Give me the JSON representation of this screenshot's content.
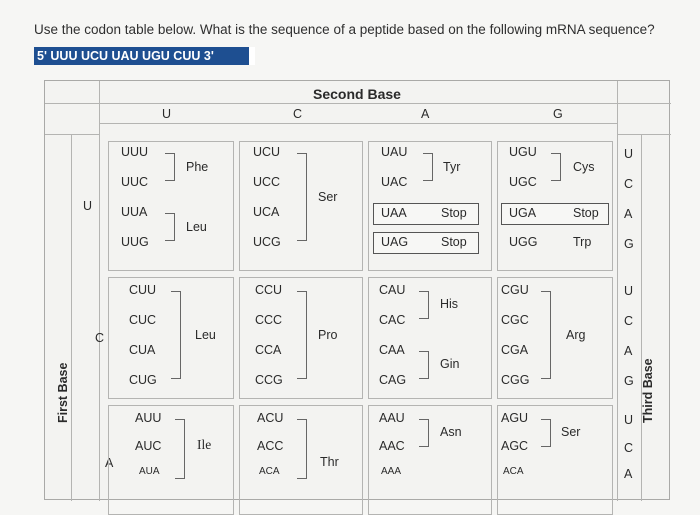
{
  "question": "Use the codon table below. What is the sequence of a peptide based on the following mRNA sequence?",
  "sequence": "5' UUU UCU UAU UGU CUU 3'",
  "table": {
    "second_base_label": "Second Base",
    "first_base_label": "First Base",
    "third_base_label": "Third Base",
    "columns": [
      "U",
      "C",
      "A",
      "G"
    ],
    "rows_first": [
      "U",
      "C",
      "A"
    ],
    "third_bases": [
      "U",
      "C",
      "A",
      "G",
      "U",
      "C",
      "A",
      "G",
      "U",
      "C",
      "A"
    ],
    "row_U": {
      "U": {
        "codons": [
          "UUU",
          "UUC",
          "UUA",
          "UUG"
        ],
        "aa1": "Phe",
        "aa2": "Leu"
      },
      "C": {
        "codons": [
          "UCU",
          "UCC",
          "UCA",
          "UCG"
        ],
        "aa": "Ser"
      },
      "A": {
        "codons": [
          "UAU",
          "UAC",
          "UAA",
          "UAG"
        ],
        "aa1": "Tyr",
        "stop1": "Stop",
        "stop2": "Stop"
      },
      "G": {
        "codons": [
          "UGU",
          "UGC",
          "UGA",
          "UGG"
        ],
        "aa1": "Cys",
        "stop": "Stop",
        "aa2": "Trp"
      }
    },
    "row_C": {
      "U": {
        "codons": [
          "CUU",
          "CUC",
          "CUA",
          "CUG"
        ],
        "aa": "Leu"
      },
      "C": {
        "codons": [
          "CCU",
          "CCC",
          "CCA",
          "CCG"
        ],
        "aa": "Pro"
      },
      "A": {
        "codons": [
          "CAU",
          "CAC",
          "CAA",
          "CAG"
        ],
        "aa1": "His",
        "aa2": "Gin"
      },
      "G": {
        "codons": [
          "CGU",
          "CGC",
          "CGA",
          "CGG"
        ],
        "aa": "Arg"
      }
    },
    "row_A": {
      "U": {
        "codons": [
          "AUU",
          "AUC",
          "AUA"
        ],
        "aa": "Ile"
      },
      "C": {
        "codons": [
          "ACU",
          "ACC",
          "ACA"
        ],
        "aa": "Thr"
      },
      "A": {
        "codons": [
          "AAU",
          "AAC",
          "AAA"
        ],
        "aa": "Asn"
      },
      "G": {
        "codons": [
          "AGU",
          "AGC",
          "ACA"
        ],
        "aa": "Ser"
      }
    }
  }
}
